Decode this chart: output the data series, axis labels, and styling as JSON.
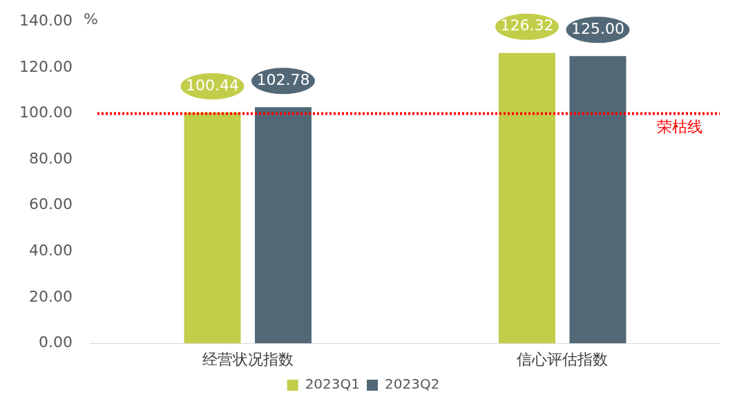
{
  "chart_data": {
    "type": "bar",
    "ylabel": "%",
    "categories": [
      "经营状况指数",
      "信心评估指数"
    ],
    "series": [
      {
        "name": "2023Q1",
        "color": "#c2ce4a",
        "values": [
          100.44,
          126.32
        ],
        "value_labels": [
          "100.44",
          "126.32"
        ]
      },
      {
        "name": "2023Q2",
        "color": "#536877",
        "values": [
          102.78,
          125.0
        ],
        "value_labels": [
          "102.78",
          "125.00"
        ]
      }
    ],
    "ylim": [
      0,
      140
    ],
    "yticks": [
      {
        "value": 0,
        "label": "0.00"
      },
      {
        "value": 20,
        "label": "20.00"
      },
      {
        "value": 40,
        "label": "40.00"
      },
      {
        "value": 60,
        "label": "60.00"
      },
      {
        "value": 80,
        "label": "80.00"
      },
      {
        "value": 100,
        "label": "100.00"
      },
      {
        "value": 120,
        "label": "120.00"
      },
      {
        "value": 140,
        "label": "140.00"
      }
    ],
    "ref_lines": [
      {
        "axis": "y",
        "value": 100,
        "label": "荣枯线",
        "color": "#ff0000",
        "line_style": "dotted"
      }
    ],
    "grid": false,
    "legend": "bottom"
  }
}
